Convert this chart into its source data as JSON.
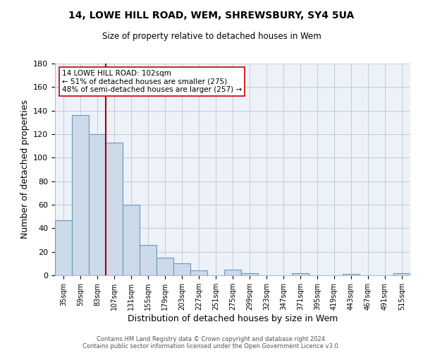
{
  "title": "14, LOWE HILL ROAD, WEM, SHREWSBURY, SY4 5UA",
  "subtitle": "Size of property relative to detached houses in Wem",
  "xlabel": "Distribution of detached houses by size in Wem",
  "ylabel": "Number of detached properties",
  "bar_color": "#ccdaea",
  "bar_edge_color": "#6699bb",
  "background_color": "#ffffff",
  "plot_bg_color": "#edf2f9",
  "grid_color": "#c0ccd8",
  "categories": [
    "35sqm",
    "59sqm",
    "83sqm",
    "107sqm",
    "131sqm",
    "155sqm",
    "179sqm",
    "203sqm",
    "227sqm",
    "251sqm",
    "275sqm",
    "299sqm",
    "323sqm",
    "347sqm",
    "371sqm",
    "395sqm",
    "419sqm",
    "443sqm",
    "467sqm",
    "491sqm",
    "515sqm"
  ],
  "values": [
    47,
    136,
    120,
    113,
    60,
    26,
    15,
    10,
    4,
    0,
    5,
    2,
    0,
    0,
    2,
    0,
    0,
    1,
    0,
    0,
    2
  ],
  "ylim": [
    0,
    180
  ],
  "yticks": [
    0,
    20,
    40,
    60,
    80,
    100,
    120,
    140,
    160,
    180
  ],
  "property_line_x": 3,
  "property_line_color": "#aa0000",
  "annotation_line1": "14 LOWE HILL ROAD: 102sqm",
  "annotation_line2": "← 51% of detached houses are smaller (275)",
  "annotation_line3": "48% of semi-detached houses are larger (257) →",
  "annotation_box_color": "#ffffff",
  "annotation_box_edge": "#cc0000",
  "footer_text": "Contains HM Land Registry data © Crown copyright and database right 2024.\nContains public sector information licensed under the Open Government Licence v3.0.",
  "figsize": [
    6.0,
    5.0
  ],
  "dpi": 100
}
